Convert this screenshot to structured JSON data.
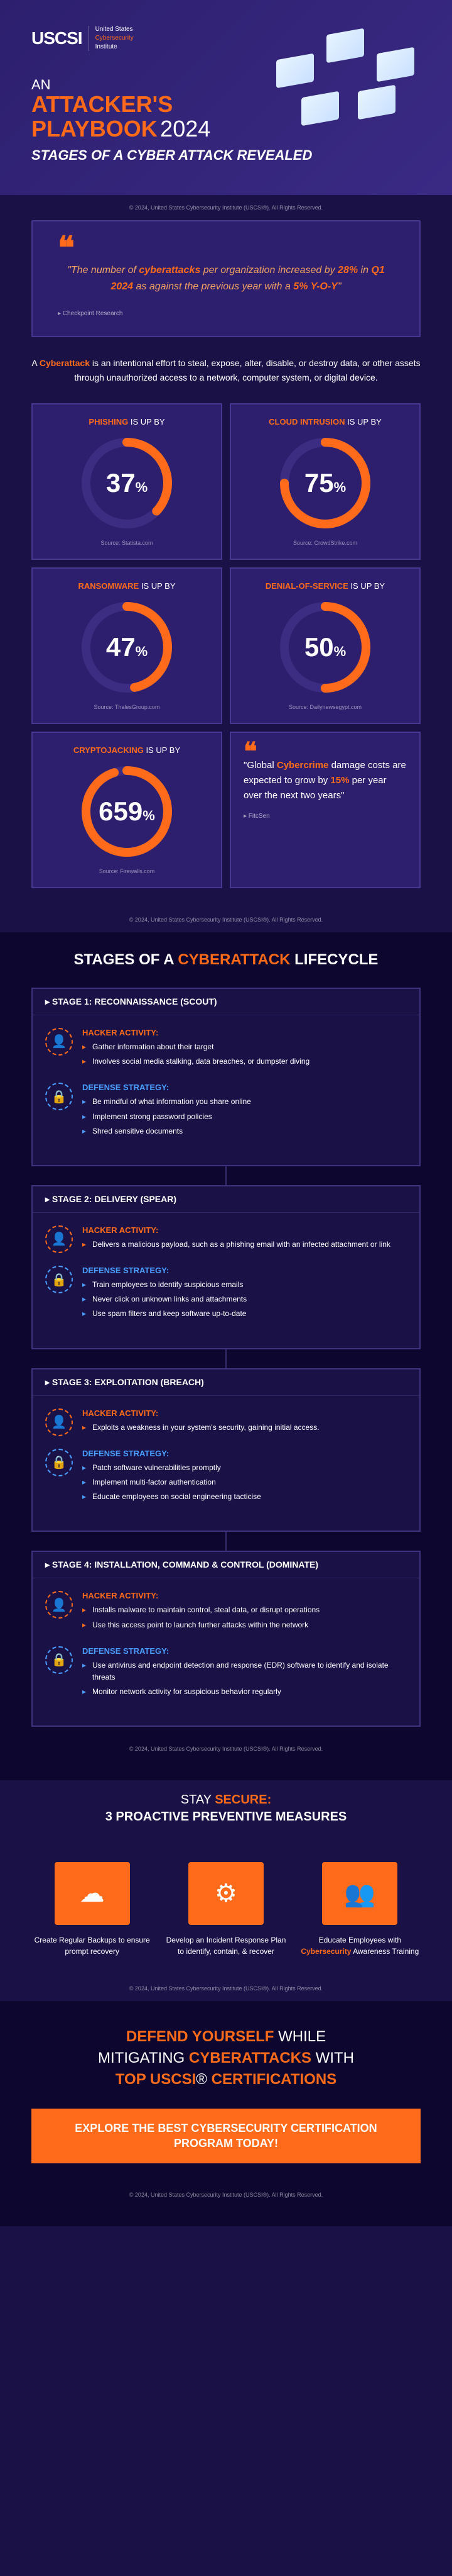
{
  "brand": {
    "logo": "USCSI",
    "tagline_line1": "United States",
    "tagline_line2": "Cybersecurity",
    "tagline_line3": "Institute"
  },
  "header": {
    "pre": "AN",
    "main": "ATTACKER'S",
    "line2_a": "PLAYBOOK",
    "line2_b": "2024",
    "sub": "STAGES OF A CYBER ATTACK REVEALED"
  },
  "copyright": "© 2024, United States Cybersecurity Institute (USCSI®). All Rights Reserved.",
  "quote1": {
    "text_pre": "\"The number of ",
    "text_b1": "cyberattacks",
    "text_mid": " per organization increased by ",
    "text_b2": "28%",
    "text_mid2": " in ",
    "text_b3": "Q1 2024",
    "text_mid3": " as against the previous year with a ",
    "text_b4": "5% Y-O-Y",
    "text_end": "\"",
    "source": "▸ Checkpoint Research"
  },
  "definition": {
    "pre": "A ",
    "bold": "Cyberattack",
    "rest": " is an intentional effort to steal, expose, alter, disable, or destroy data, or other assets through unauthorized access to a network, computer system, or digital device."
  },
  "stats": [
    {
      "label_b": "PHISHING",
      "label_rest": " IS UP BY",
      "value": "37",
      "source": "Source: Statista.com",
      "arc_pct": 37
    },
    {
      "label_b": "CLOUD INTRUSION",
      "label_rest": " IS UP BY",
      "value": "75",
      "source": "Source: CrowdStrike.com",
      "arc_pct": 75
    },
    {
      "label_b": "RANSOMWARE",
      "label_rest": " IS UP BY",
      "value": "47",
      "source": "Source: ThalesGroup.com",
      "arc_pct": 47
    },
    {
      "label_b": "DENIAL-OF-SERVICE",
      "label_rest": " IS UP BY",
      "value": "50",
      "source": "Source: Dailynewsegypt.com",
      "arc_pct": 50
    },
    {
      "label_b": "CRYPTOJACKING",
      "label_rest": " IS UP BY",
      "value": "659",
      "source": "Source: Firewalls.com",
      "arc_pct": 95
    }
  ],
  "quote2": {
    "pre": "\"Global ",
    "b1": "Cybercrime",
    "mid": " damage costs are expected to grow by ",
    "b2": "15%",
    "end": " per year over the next two years\"",
    "source": "▸ FitcSen"
  },
  "lifecycle_title_a": "STAGES OF A ",
  "lifecycle_title_b": "CYBERATTACK",
  "lifecycle_title_c": " LIFECYCLE",
  "stages": [
    {
      "title": "▸ STAGE 1: RECONNAISSANCE (SCOUT)",
      "hacker": [
        "Gather information about their target",
        "Involves social media stalking, data breaches, or dumpster diving"
      ],
      "defense": [
        "Be mindful of what information you share online",
        "Implement strong password policies",
        "Shred sensitive documents"
      ]
    },
    {
      "title": "▸ STAGE 2: DELIVERY (SPEAR)",
      "hacker": [
        "Delivers a malicious payload, such as a phishing email with an infected attachment or link"
      ],
      "defense": [
        "Train employees to identify suspicious emails",
        "Never click on unknown links and attachments",
        "Use spam filters and keep software up-to-date"
      ]
    },
    {
      "title": "▸ STAGE 3: EXPLOITATION (BREACH)",
      "hacker": [
        "Exploits a weakness in your system's security, gaining initial access."
      ],
      "defense": [
        "Patch software vulnerabilities promptly",
        "Implement multi-factor authentication",
        "Educate employees on social engineering tacticise"
      ]
    },
    {
      "title": "▸ STAGE 4: INSTALLATION, COMMAND & CONTROL (DOMINATE)",
      "hacker": [
        "Installs malware to maintain control, steal data, or disrupt operations",
        "Use this access point to launch further attacks within the network"
      ],
      "defense": [
        "Use antivirus and endpoint detection and response (EDR) software to identify and isolate threats",
        "Monitor network activity for suspicious behavior regularly"
      ]
    }
  ],
  "hacker_label": "HACKER ACTIVITY:",
  "defense_label": "DEFENSE STRATEGY:",
  "stay": {
    "pre": "STAY ",
    "bold": "SECURE:",
    "sub": "3 PROACTIVE PREVENTIVE MEASURES"
  },
  "measures": [
    {
      "text_pre": "Create Regular Backups to ensure prompt recovery",
      "icon": "☁"
    },
    {
      "text_pre": "Develop an Incident Response Plan to identify, contain, & recover",
      "icon": "⚙"
    },
    {
      "text_a": "Educate Employees with ",
      "text_b": "Cybersecurity",
      "text_c": " Awareness Training",
      "icon": "👥"
    }
  ],
  "cta": {
    "l1_a": "DEFEND YOURSELF",
    "l1_b": " WHILE",
    "l2_a": "MITIGATING ",
    "l2_b": "CYBERATTACKS",
    "l2_c": " WITH",
    "l3_a": "TOP USCSI",
    "l3_b": "® ",
    "l3_c": "CERTIFICATIONS",
    "button": "EXPLORE THE BEST CYBERSECURITY CERTIFICATION PROGRAM TODAY!"
  },
  "colors": {
    "accent": "#ff6b1a",
    "bg_primary": "#1a1247",
    "bg_dark": "#0d0730",
    "card_bg": "#2d1f6e",
    "blue": "#4a9eff"
  }
}
